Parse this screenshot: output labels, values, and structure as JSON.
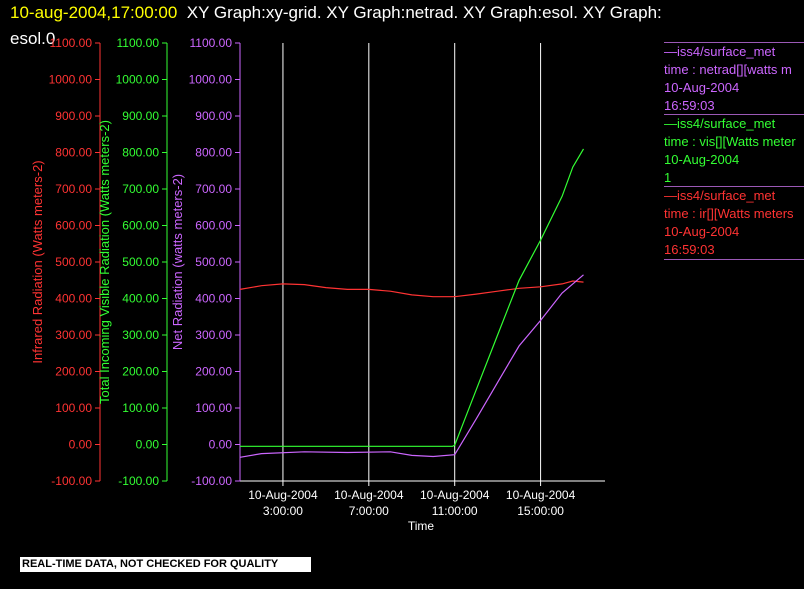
{
  "header": {
    "timestamp": "10-aug-2004,17:00:00",
    "graphs": "XY Graph:xy-grid.  XY Graph:netrad.  XY Graph:esol.  XY Graph:",
    "graphs_cont": "esol.0"
  },
  "legend": [
    {
      "source": "—iss4/surface_met",
      "field": "time : netrad[][watts m",
      "date": "10-Aug-2004",
      "time": "16:59:03",
      "color": "#cc66ff"
    },
    {
      "source": "—iss4/surface_met",
      "field": "time : vis[][Watts meter",
      "date": "10-Aug-2004",
      "time": "1",
      "color": "#33ff33"
    },
    {
      "source": "—iss4/surface_met",
      "field": "time : ir[][Watts meters",
      "date": "10-Aug-2004",
      "time": "16:59:03",
      "color": "#ff3333"
    }
  ],
  "banner": "REAL-TIME DATA, NOT CHECKED FOR QUALITY",
  "chart_data": {
    "type": "line",
    "xlabel": "Time",
    "x_ticks": [
      {
        "date": "10-Aug-2004",
        "time": "3:00:00",
        "hour": 3
      },
      {
        "date": "10-Aug-2004",
        "time": "7:00:00",
        "hour": 7
      },
      {
        "date": "10-Aug-2004",
        "time": "11:00:00",
        "hour": 11
      },
      {
        "date": "10-Aug-2004",
        "time": "15:00:00",
        "hour": 15
      }
    ],
    "xlim_hours": [
      1.0,
      18.0
    ],
    "ylim": [
      -100,
      1100
    ],
    "y_ticks": [
      "-100.00",
      "0.00",
      "100.00",
      "200.00",
      "300.00",
      "400.00",
      "500.00",
      "600.00",
      "700.00",
      "800.00",
      "900.00",
      "1000.00",
      "1100.00"
    ],
    "grid": "vertical",
    "axes": [
      {
        "label": "Infrared Radiation (Watts meters-2)",
        "color": "#ff3333"
      },
      {
        "label": "Total Incoming Visible Radiation (Watts meters-2)",
        "color": "#33ff33"
      },
      {
        "label": "Net Radiation (watts meters-2)",
        "color": "#cc66ff"
      }
    ],
    "series": [
      {
        "color": "#ff3333",
        "x": [
          1.0,
          2.0,
          3.0,
          4.0,
          5.0,
          6.0,
          7.0,
          8.0,
          9.0,
          10.0,
          11.0,
          12.0,
          13.0,
          14.0,
          15.0,
          16.0,
          16.5,
          17.0
        ],
        "y": [
          425,
          435,
          440,
          438,
          430,
          425,
          425,
          420,
          410,
          405,
          405,
          412,
          420,
          428,
          432,
          440,
          448,
          445
        ]
      },
      {
        "color": "#33ff33",
        "x": [
          1.0,
          2.0,
          4.0,
          6.0,
          8.0,
          10.0,
          10.9,
          11.0,
          12.0,
          13.0,
          14.0,
          15.0,
          16.0,
          16.5,
          17.0
        ],
        "y": [
          -5,
          -5,
          -5,
          -5,
          -5,
          -5,
          -5,
          -2,
          150,
          300,
          450,
          560,
          680,
          760,
          810
        ]
      },
      {
        "color": "#cc66ff",
        "x": [
          1.0,
          2.0,
          4.0,
          6.0,
          8.0,
          9.0,
          10.0,
          11.0,
          12.0,
          13.0,
          14.0,
          15.0,
          16.0,
          16.5,
          17.0
        ],
        "y": [
          -35,
          -25,
          -20,
          -22,
          -20,
          -30,
          -33,
          -28,
          70,
          170,
          270,
          340,
          415,
          440,
          465
        ]
      }
    ]
  }
}
